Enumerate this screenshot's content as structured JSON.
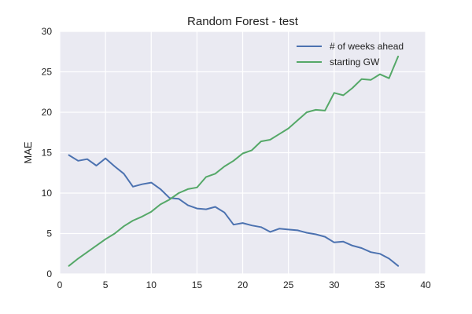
{
  "chart_data": {
    "type": "line",
    "title": "Random Forest - test",
    "xlabel": "",
    "ylabel": "MAE",
    "xlim": [
      0,
      40
    ],
    "ylim": [
      0,
      30
    ],
    "xticks": [
      0,
      5,
      10,
      15,
      20,
      25,
      30,
      35,
      40
    ],
    "yticks": [
      0,
      5,
      10,
      15,
      20,
      25,
      30
    ],
    "grid": true,
    "background": "#eaeaf2",
    "legend_position": "top-right",
    "x": [
      1,
      2,
      3,
      4,
      5,
      6,
      7,
      8,
      9,
      10,
      11,
      12,
      13,
      14,
      15,
      16,
      17,
      18,
      19,
      20,
      21,
      22,
      23,
      24,
      25,
      26,
      27,
      28,
      29,
      30,
      31,
      32,
      33,
      34,
      35,
      36,
      37
    ],
    "series": [
      {
        "name": "# of weeks ahead",
        "color": "#4c72b0",
        "values": [
          14.7,
          14.0,
          14.2,
          13.4,
          14.3,
          13.3,
          12.4,
          10.8,
          11.1,
          11.3,
          10.5,
          9.4,
          9.3,
          8.5,
          8.1,
          8.0,
          8.3,
          7.6,
          6.1,
          6.3,
          6.0,
          5.8,
          5.2,
          5.6,
          5.5,
          5.4,
          5.1,
          4.9,
          4.6,
          3.9,
          4.0,
          3.5,
          3.2,
          2.7,
          2.5,
          1.9,
          1.0
        ]
      },
      {
        "name": "starting GW",
        "color": "#55a868",
        "values": [
          1.0,
          1.9,
          2.7,
          3.5,
          4.3,
          5.0,
          5.9,
          6.6,
          7.1,
          7.7,
          8.6,
          9.2,
          10.0,
          10.5,
          10.7,
          12.0,
          12.4,
          13.3,
          14.0,
          14.9,
          15.3,
          16.4,
          16.6,
          17.3,
          18.0,
          19.0,
          20.0,
          20.3,
          20.2,
          22.4,
          22.1,
          23.0,
          24.1,
          24.0,
          24.7,
          24.2,
          26.9
        ]
      }
    ]
  }
}
